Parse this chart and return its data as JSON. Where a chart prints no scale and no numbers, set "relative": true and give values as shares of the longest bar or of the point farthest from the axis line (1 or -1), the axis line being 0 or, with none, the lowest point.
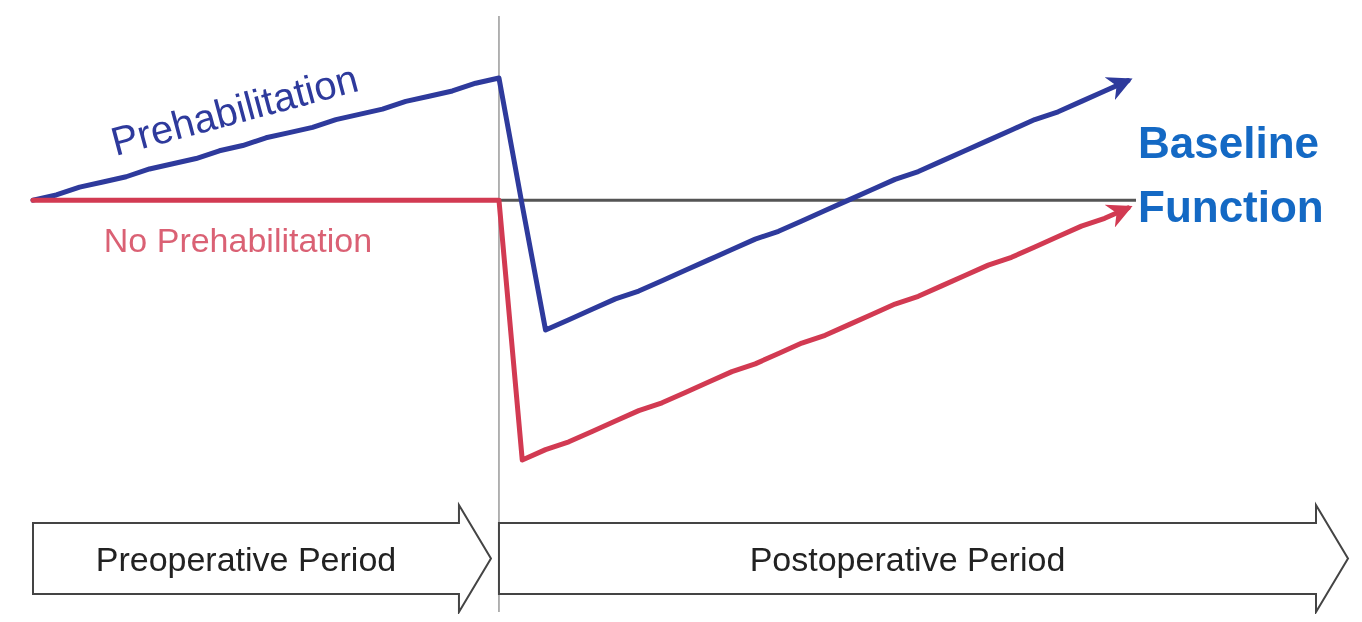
{
  "chart_data": {
    "type": "line",
    "relative": true,
    "marker": "none",
    "line_style": "solid",
    "categories": [
      null,
      null,
      null,
      null,
      null,
      null,
      null,
      null,
      null,
      null,
      null,
      null,
      null,
      null,
      null,
      null,
      null,
      null,
      null,
      null,
      null,
      null,
      null,
      null,
      null,
      null,
      null,
      null,
      null,
      null,
      null,
      null,
      null,
      null,
      null,
      null,
      null,
      null,
      null,
      null,
      null,
      null,
      null,
      null,
      null,
      null,
      null,
      null
    ],
    "series": [
      {
        "name": "Prehabilitation",
        "color": "#2e3a9c",
        "values": [
          0,
          0.02,
          0.05,
          0.07,
          0.09,
          0.12,
          0.14,
          0.16,
          0.19,
          0.21,
          0.24,
          0.26,
          0.28,
          0.31,
          0.33,
          0.35,
          0.38,
          0.4,
          0.42,
          0.45,
          0.47,
          -0.02,
          -0.5,
          -0.46,
          -0.42,
          -0.38,
          -0.35,
          -0.31,
          -0.27,
          -0.23,
          -0.19,
          -0.15,
          -0.12,
          -0.08,
          -0.04,
          0,
          0.04,
          0.08,
          0.11,
          0.15,
          0.19,
          0.23,
          0.27,
          0.31,
          0.34,
          0.38,
          0.42,
          0.46
        ]
      },
      {
        "name": "No Prehabilitation",
        "color": "#d23a52",
        "values": [
          0,
          0,
          0,
          0,
          0,
          0,
          0,
          0,
          0,
          0,
          0,
          0,
          0,
          0,
          0,
          0,
          0,
          0,
          0,
          0,
          0,
          -1,
          -0.96,
          -0.93,
          -0.89,
          -0.85,
          -0.81,
          -0.78,
          -0.74,
          -0.7,
          -0.66,
          -0.63,
          -0.59,
          -0.55,
          -0.52,
          -0.48,
          -0.44,
          -0.4,
          -0.37,
          -0.33,
          -0.29,
          -0.25,
          -0.22,
          -0.18,
          -0.14,
          -0.1,
          -0.07,
          -0.03
        ]
      }
    ],
    "annotations": [
      "Baseline Function",
      "Preoperative Period",
      "Postoperative Period"
    ]
  }
}
